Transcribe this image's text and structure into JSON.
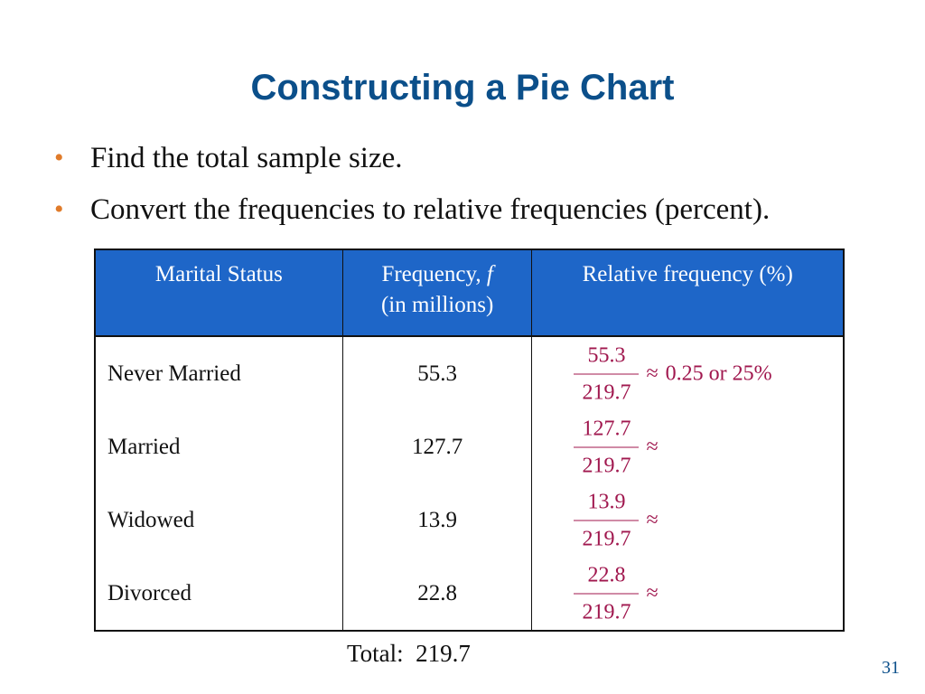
{
  "title": "Constructing a Pie Chart",
  "bullets": [
    "Find the total sample size.",
    "Convert the frequencies to relative frequencies (percent)."
  ],
  "table": {
    "headers": {
      "status": "Marital Status",
      "freq_line1": "Frequency, ",
      "freq_var": "f",
      "freq_line2": "(in millions)",
      "rel": "Relative frequency (%)"
    },
    "rows": [
      {
        "status": "Never Married",
        "freq": "55.3",
        "num": "55.3",
        "den": "219.7",
        "approx": "≈",
        "result": "0.25 or 25%"
      },
      {
        "status": "Married",
        "freq": "127.7",
        "num": "127.7",
        "den": "219.7",
        "approx": "≈",
        "result": ""
      },
      {
        "status": "Widowed",
        "freq": "13.9",
        "num": "13.9",
        "den": "219.7",
        "approx": "≈",
        "result": ""
      },
      {
        "status": "Divorced",
        "freq": "22.8",
        "num": "22.8",
        "den": "219.7",
        "approx": "≈",
        "result": ""
      }
    ]
  },
  "total": "Total:  219.7",
  "page_number": "31"
}
